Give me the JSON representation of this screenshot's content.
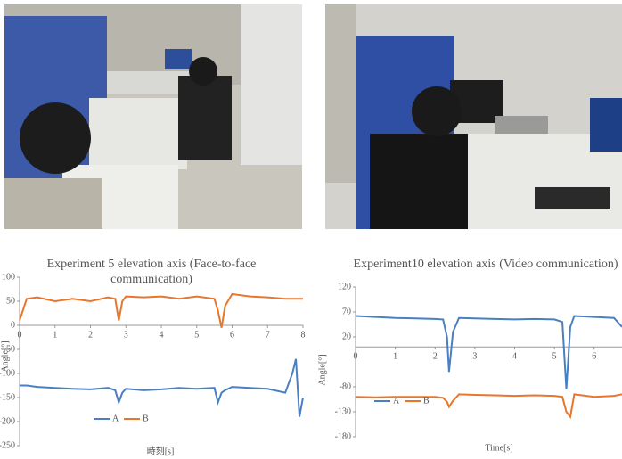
{
  "chart_data": [
    {
      "type": "line",
      "title": "Experiment 5 elevation axis (Face-to-face communication)",
      "y_label": "Angle[°]",
      "x_label": "時刻[s]",
      "x": [
        0,
        0.2,
        0.5,
        1,
        1.5,
        2,
        2.5,
        2.7,
        2.8,
        2.9,
        3,
        3.5,
        4,
        4.5,
        5,
        5.5,
        5.6,
        5.7,
        5.8,
        6,
        6.5,
        7,
        7.5,
        7.7,
        7.8,
        7.9,
        8
      ],
      "series": [
        {
          "name": "A",
          "color": "#4a7fc1",
          "values": [
            -125,
            -125,
            -128,
            -130,
            -132,
            -133,
            -130,
            -135,
            -160,
            -140,
            -132,
            -135,
            -133,
            -130,
            -132,
            -130,
            -160,
            -140,
            -135,
            -128,
            -130,
            -132,
            -140,
            -100,
            -70,
            -190,
            -150
          ]
        },
        {
          "name": "B",
          "color": "#e8762b",
          "values": [
            10,
            55,
            58,
            50,
            55,
            50,
            58,
            55,
            10,
            50,
            60,
            58,
            60,
            55,
            60,
            55,
            30,
            -5,
            40,
            65,
            60,
            58,
            55,
            55,
            55,
            55,
            55
          ]
        }
      ],
      "xlim": [
        0,
        8
      ],
      "xticks": [
        0,
        1,
        2,
        3,
        4,
        5,
        6,
        7,
        8
      ],
      "ylim": [
        -250,
        100
      ],
      "yticks": [
        100,
        50,
        0,
        -50,
        -100,
        -150,
        -200,
        -250
      ]
    },
    {
      "type": "line",
      "title": "Experiment10 elevation axis (Video communication)",
      "y_label": "Angle[°]",
      "x_label": "Time[s]",
      "x": [
        0,
        0.5,
        1,
        1.5,
        2,
        2.2,
        2.3,
        2.35,
        2.45,
        2.6,
        3,
        3.5,
        4,
        4.5,
        5,
        5.2,
        5.3,
        5.4,
        5.5,
        6,
        6.5,
        6.7
      ],
      "series": [
        {
          "name": "A",
          "color": "#4a7fc1",
          "values": [
            62,
            60,
            58,
            57,
            56,
            55,
            20,
            -50,
            30,
            58,
            57,
            56,
            55,
            56,
            55,
            50,
            -85,
            40,
            62,
            60,
            58,
            40
          ]
        },
        {
          "name": "B",
          "color": "#e8762b",
          "values": [
            -100,
            -101,
            -100,
            -100,
            -100,
            -102,
            -110,
            -120,
            -108,
            -95,
            -96,
            -97,
            -98,
            -97,
            -98,
            -100,
            -130,
            -140,
            -95,
            -100,
            -98,
            -95
          ]
        }
      ],
      "xlim": [
        0,
        6.7
      ],
      "xticks": [
        0,
        1,
        2,
        3,
        4,
        5,
        6
      ],
      "ylim": [
        -180,
        120
      ],
      "yticks": [
        120,
        70,
        20,
        -80,
        -130,
        -180
      ]
    }
  ]
}
